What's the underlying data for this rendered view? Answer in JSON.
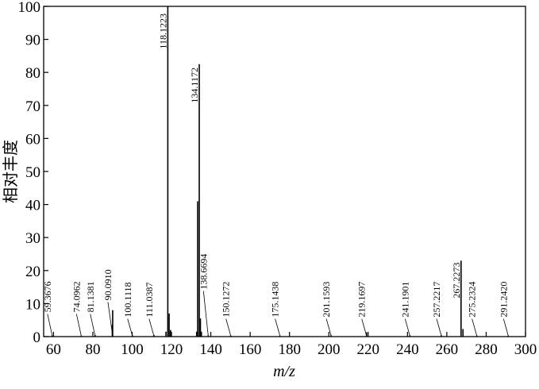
{
  "chart_data": {
    "type": "bar",
    "xlabel": "m/z",
    "ylabel": "相对丰度",
    "xlim": [
      55,
      300
    ],
    "ylim": [
      0,
      100
    ],
    "x_ticks": [
      60,
      80,
      100,
      120,
      140,
      160,
      180,
      200,
      220,
      240,
      260,
      280,
      300
    ],
    "y_ticks": [
      0,
      10,
      20,
      30,
      40,
      50,
      60,
      70,
      80,
      90,
      100
    ],
    "grid": false,
    "peaks": [
      {
        "mz": 59.3676,
        "intensity": 0.3
      },
      {
        "mz": 74.0962,
        "intensity": 0.3
      },
      {
        "mz": 81.1381,
        "intensity": 0.5
      },
      {
        "mz": 89.9,
        "intensity": 3.5
      },
      {
        "mz": 90.091,
        "intensity": 8.0
      },
      {
        "mz": 100.1118,
        "intensity": 0.4
      },
      {
        "mz": 111.0387,
        "intensity": 0.5
      },
      {
        "mz": 117.2,
        "intensity": 1.5
      },
      {
        "mz": 118.1223,
        "intensity": 100
      },
      {
        "mz": 118.8,
        "intensity": 7.0
      },
      {
        "mz": 119.5,
        "intensity": 2.0
      },
      {
        "mz": 132.8,
        "intensity": 1.5
      },
      {
        "mz": 133.3,
        "intensity": 41
      },
      {
        "mz": 134.1172,
        "intensity": 82.5
      },
      {
        "mz": 134.7,
        "intensity": 5.5
      },
      {
        "mz": 135.2,
        "intensity": 1.5
      },
      {
        "mz": 138.6694,
        "intensity": 0.4
      },
      {
        "mz": 150.1272,
        "intensity": 0.3
      },
      {
        "mz": 175.1438,
        "intensity": 0.3
      },
      {
        "mz": 201.1593,
        "intensity": 0.4
      },
      {
        "mz": 219.1697,
        "intensity": 1.3
      },
      {
        "mz": 241.1901,
        "intensity": 0.4
      },
      {
        "mz": 257.2217,
        "intensity": 0.4
      },
      {
        "mz": 267.2273,
        "intensity": 23
      },
      {
        "mz": 268.2,
        "intensity": 2.3
      },
      {
        "mz": 275.2324,
        "intensity": 0.3
      },
      {
        "mz": 291.242,
        "intensity": 0.3
      }
    ],
    "peak_labels": [
      {
        "text": "59.3676",
        "mz": 59.3676
      },
      {
        "text": "74.0962",
        "mz": 74.0962
      },
      {
        "text": "81.1381",
        "mz": 81.1381
      },
      {
        "text": "90.0910",
        "mz": 90.091
      },
      {
        "text": "100.1118",
        "mz": 100.1118
      },
      {
        "text": "111.0387",
        "mz": 111.0387
      },
      {
        "text": "118.1223",
        "mz": 118.1223
      },
      {
        "text": "134.1172",
        "mz": 134.1172
      },
      {
        "text": "138.6694",
        "mz": 138.6694
      },
      {
        "text": "150.1272",
        "mz": 150.1272
      },
      {
        "text": "175.1438",
        "mz": 175.1438
      },
      {
        "text": "201.1593",
        "mz": 201.1593
      },
      {
        "text": "219.1697",
        "mz": 219.1697
      },
      {
        "text": "241.1901",
        "mz": 241.1901
      },
      {
        "text": "257.2217",
        "mz": 257.2217
      },
      {
        "text": "267.2273",
        "mz": 267.2273
      },
      {
        "text": "275.2324",
        "mz": 275.2324
      },
      {
        "text": "291.2420",
        "mz": 291.242
      }
    ]
  }
}
